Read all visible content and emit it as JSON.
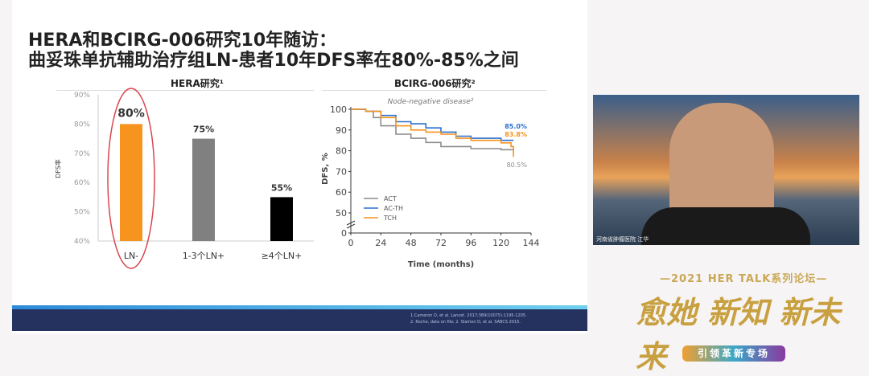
{
  "slide": {
    "title_line1": "HERA和BCIRG-006研究10年随访：",
    "title_line2": "曲妥珠单抗辅助治疗组LN-患者10年DFS率在80%-85%之间",
    "references": [
      "1.Cameron D, et al. Lancet. 2017;389(10075):1195-1205.",
      "2. Roche, data on file; 2. Slamon D, et al. SABCS 2015."
    ]
  },
  "chart_data": [
    {
      "type": "bar",
      "title": "HERA研究¹",
      "ylabel": "DFS率",
      "ylim": [
        40,
        90
      ],
      "yticks": [
        "40%",
        "50%",
        "60%",
        "70%",
        "80%",
        "90%"
      ],
      "categories": [
        "LN-",
        "1-3个LN+",
        "≥4个LN+"
      ],
      "values": [
        80,
        75,
        55
      ],
      "data_labels": [
        "80%",
        "75%",
        "55%"
      ],
      "colors": [
        "#f7941d",
        "#808080",
        "#000000"
      ],
      "highlight": "LN-",
      "highlight_color": "#d9474f"
    },
    {
      "type": "line",
      "title": "BCIRG-006研究²",
      "subtitle": "Node-negative disease²",
      "xlabel": "Time (months)",
      "ylabel": "DFS, %",
      "xlim": [
        0,
        144
      ],
      "xticks": [
        0,
        24,
        48,
        72,
        96,
        120,
        144
      ],
      "yticks": [
        0,
        50,
        60,
        70,
        80,
        90,
        100
      ],
      "axis_break": true,
      "legend": "bottom-left",
      "series": [
        {
          "name": "ACT",
          "color": "#8c8c8c",
          "end_label": "80.5%",
          "x": [
            0,
            12,
            18,
            24,
            36,
            48,
            60,
            72,
            84,
            96,
            108,
            120,
            130
          ],
          "y": [
            100,
            99,
            96,
            92,
            88,
            86,
            84,
            82,
            82,
            81,
            81,
            80.5,
            79.5
          ]
        },
        {
          "name": "AC-TH",
          "color": "#2a6fd1",
          "end_label": "85.0%",
          "x": [
            0,
            12,
            24,
            36,
            48,
            60,
            72,
            84,
            96,
            108,
            120,
            130
          ],
          "y": [
            100,
            99,
            97,
            94,
            93,
            91,
            89,
            87,
            86,
            86,
            85,
            85
          ]
        },
        {
          "name": "TCH",
          "color": "#f7941d",
          "end_label": "83.8%",
          "x": [
            0,
            12,
            24,
            36,
            48,
            60,
            72,
            84,
            96,
            108,
            120,
            128,
            130
          ],
          "y": [
            100,
            99,
            96,
            92,
            90,
            89,
            88,
            86,
            85,
            85,
            83.8,
            82,
            77
          ]
        }
      ]
    }
  ],
  "webcam": {
    "caption": "河南省肿瘤医院 江华"
  },
  "branding": {
    "line1": "—2021 HER TALK系列论坛—",
    "line2": "愈她 新知 新未来",
    "button": "引领革新专场"
  }
}
